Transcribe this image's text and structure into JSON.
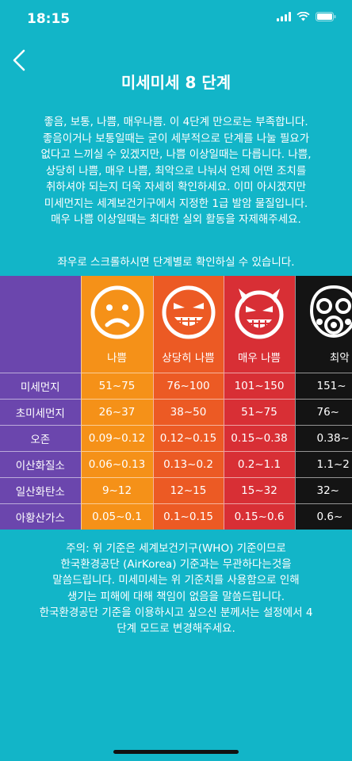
{
  "status": {
    "time": "18:15"
  },
  "header": {
    "title": "미세미세 8 단계"
  },
  "intro": "좋음, 보통, 나쁨, 매우나쁨. 이 4단계 만으로는 부족합니다.\n좋음이거나 보통일때는 굳이 세부적으로 단계를 나눌 필요가\n없다고 느끼실 수 있겠지만, 나쁨 이상일때는 다릅니다. 나쁨,\n상당히 나쁨, 매우 나쁨, 최악으로 나눠서 언제 어떤 조치를\n취하셔야 되는지 더욱 자세히 확인하세요. 이미 아시겠지만\n미세먼지는 세계보건기구에서 지정한 1급 발암 물질입니다.\n매우 나쁨 이상일때는 최대한 실외 활동을 자제해주세요.",
  "scroll_hint": "좌우로 스크롤하시면 단계별로 확인하실 수 있습니다.",
  "table": {
    "grades": [
      {
        "name": "나쁨",
        "icon": "sad-face-icon",
        "color": "#f59118"
      },
      {
        "name": "상당히 나쁨",
        "icon": "angry-grin-face-icon",
        "color": "#ec5a24"
      },
      {
        "name": "매우 나쁨",
        "icon": "devil-face-icon",
        "color": "#d82f35"
      },
      {
        "name": "최악",
        "icon": "gas-mask-icon",
        "color": "#141414"
      }
    ],
    "rows": [
      {
        "label": "미세먼지",
        "values": [
          "51~75",
          "76~100",
          "101~150",
          "151~"
        ]
      },
      {
        "label": "초미세먼지",
        "values": [
          "26~37",
          "38~50",
          "51~75",
          "76~"
        ]
      },
      {
        "label": "오존",
        "values": [
          "0.09~0.12",
          "0.12~0.15",
          "0.15~0.38",
          "0.38~"
        ]
      },
      {
        "label": "이산화질소",
        "values": [
          "0.06~0.13",
          "0.13~0.2",
          "0.2~1.1",
          "1.1~2"
        ]
      },
      {
        "label": "일산화탄소",
        "values": [
          "9~12",
          "12~15",
          "15~32",
          "32~"
        ]
      },
      {
        "label": "아황산가스",
        "values": [
          "0.05~0.1",
          "0.1~0.15",
          "0.15~0.6",
          "0.6~"
        ]
      }
    ]
  },
  "footer": "주의: 위 기준은 세계보건기구(WHO) 기준이므로\n한국환경공단 (AirKorea) 기준과는 무관하다는것을\n말씀드립니다. 미세미세는 위 기준치를 사용함으로 인해\n생기는 피해에 대해 책임이 없음을 말씀드립니다.\n한국환경공단 기준을 이용하시고 싶으신 분께서는 설정에서 4\n단계 모드로 변경해주세요."
}
